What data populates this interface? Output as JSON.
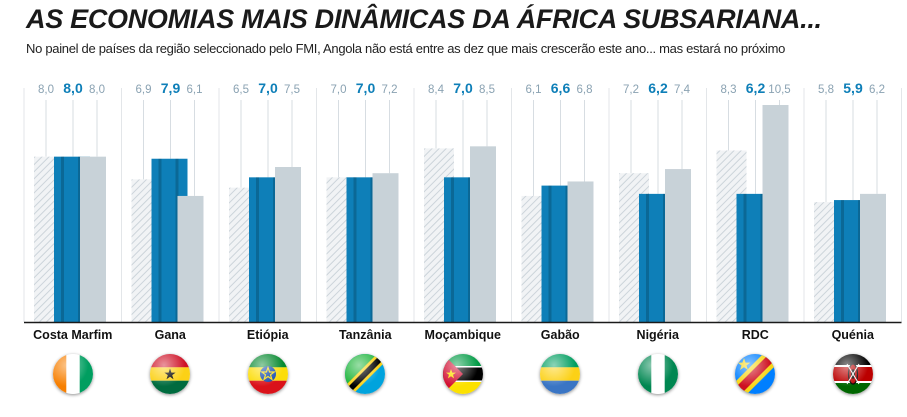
{
  "title": "AS ECONOMIAS MAIS DINÂMICAS DA ÁFRICA SUBSARIANA...",
  "subtitle": "No painel de países da região seleccionado pelo FMI, Angola não está entre as dez que mais crescerão este ano... mas estará no próximo",
  "colors": {
    "prev": "#dfe4e8",
    "current": "#0e7fb8",
    "next": "#c8d2d8",
    "value_label": "#8aa2b2",
    "current_label": "#0e7fb8"
  },
  "chart_data": {
    "type": "bar",
    "categories": [
      "Costa Marfim",
      "Gana",
      "Etiópia",
      "Tanzânia",
      "Moçambique",
      "Gabão",
      "Nigéria",
      "RDC",
      "Quénia"
    ],
    "series": [
      {
        "values": [
          8.0,
          6.9,
          6.5,
          7.0,
          8.4,
          6.1,
          7.2,
          8.3,
          5.8
        ]
      },
      {
        "values": [
          8.0,
          7.9,
          7.0,
          7.0,
          7.0,
          6.6,
          6.2,
          6.2,
          5.9
        ]
      },
      {
        "values": [
          8.0,
          6.1,
          7.5,
          7.2,
          8.5,
          6.8,
          7.4,
          10.5,
          6.2
        ]
      }
    ],
    "value_labels": [
      [
        "8,0",
        "8,0",
        "8,0"
      ],
      [
        "6,9",
        "7,9",
        "6,1"
      ],
      [
        "6,5",
        "7,0",
        "7,5"
      ],
      [
        "7,0",
        "7,0",
        "7,2"
      ],
      [
        "8,4",
        "7,0",
        "8,5"
      ],
      [
        "6,1",
        "6,6",
        "6,8"
      ],
      [
        "7,2",
        "6,2",
        "7,4"
      ],
      [
        "8,3",
        "6,2",
        "10,5"
      ],
      [
        "5,8",
        "5,9",
        "6,2"
      ]
    ],
    "ylim": [
      0,
      10.5
    ],
    "grid": false,
    "legend": false
  },
  "flags": [
    {
      "country": "Costa Marfim",
      "icon": "ivory-coast-flag-icon"
    },
    {
      "country": "Gana",
      "icon": "ghana-flag-icon"
    },
    {
      "country": "Etiópia",
      "icon": "ethiopia-flag-icon"
    },
    {
      "country": "Tanzânia",
      "icon": "tanzania-flag-icon"
    },
    {
      "country": "Moçambique",
      "icon": "mozambique-flag-icon"
    },
    {
      "country": "Gabão",
      "icon": "gabon-flag-icon"
    },
    {
      "country": "Nigéria",
      "icon": "nigeria-flag-icon"
    },
    {
      "country": "RDC",
      "icon": "dr-congo-flag-icon"
    },
    {
      "country": "Quénia",
      "icon": "kenya-flag-icon"
    }
  ]
}
